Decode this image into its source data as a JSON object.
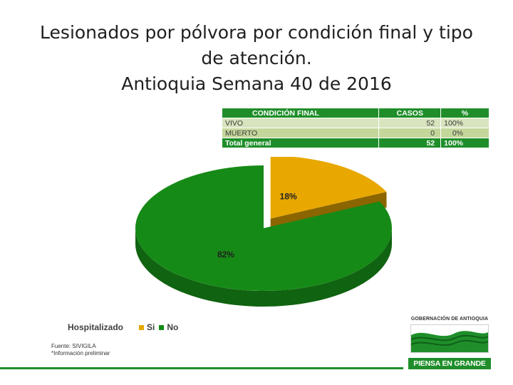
{
  "title": {
    "line1": "Lesionados por pólvora por condición final y tipo",
    "line2": "de atención.",
    "line3": "Antioquia Semana 40 de 2016"
  },
  "summary_table": {
    "headers": [
      "CONDICIÓN FINAL",
      "CASOS",
      "%"
    ],
    "rows": [
      [
        "VIVO",
        "52",
        "100%"
      ],
      [
        "MUERTO",
        "0",
        "0%"
      ]
    ],
    "total": [
      "Total general",
      "52",
      "100%"
    ]
  },
  "chart_data": {
    "type": "pie",
    "title": "",
    "legend_title": "Hospitalizado",
    "legend_position": "bottom-left",
    "categories": [
      "Si",
      "No"
    ],
    "values": [
      18,
      82
    ],
    "labels": [
      "18%",
      "82%"
    ],
    "colors": [
      "#e8a800",
      "#168a16"
    ],
    "exploded": "Si",
    "style": "3d"
  },
  "source": {
    "line1": "Fuente: SIVIGILA",
    "line2": "*Información preliminar"
  },
  "logo": {
    "name": "GOBERNACIÓN DE ANTIOQUIA",
    "slogan": "PIENSA EN GRANDE"
  }
}
